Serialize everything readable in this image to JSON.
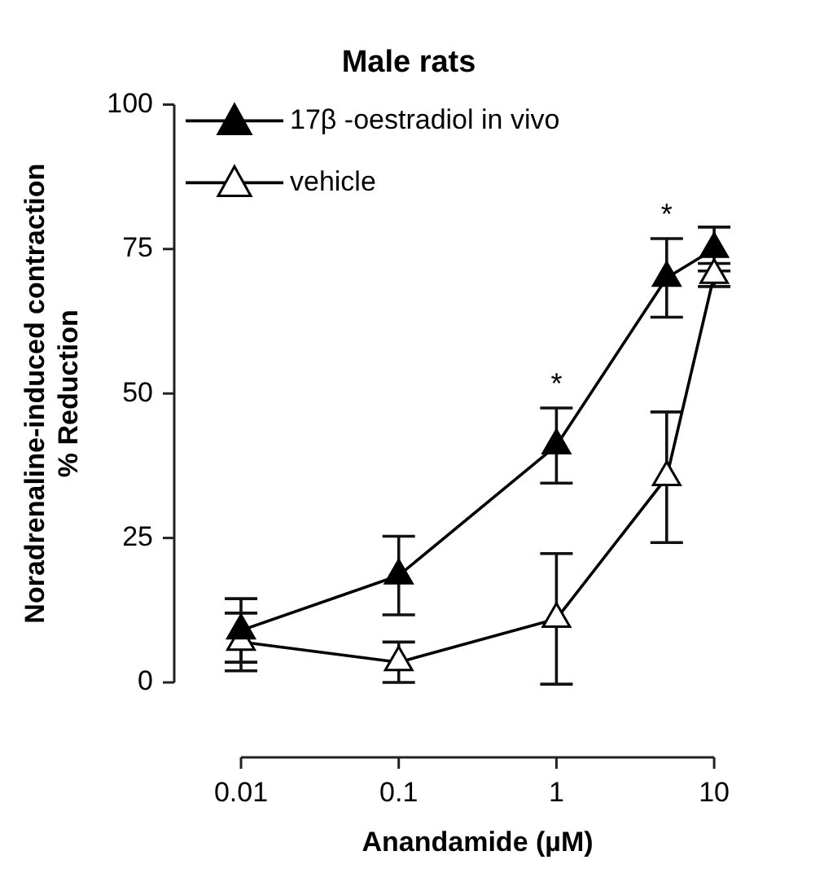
{
  "chart_data": {
    "type": "line",
    "title": "Male rats",
    "xlabel": "Anandamide (µM)",
    "ylabel": [
      "Noradrenaline-induced contraction",
      "% Reduction"
    ],
    "x": [
      0.01,
      0.1,
      1,
      5,
      10
    ],
    "log": "x",
    "xlim": [
      0.01,
      10
    ],
    "xticks": [
      0.01,
      0.1,
      1,
      10
    ],
    "ylim": [
      0,
      100
    ],
    "yticks": [
      0,
      25,
      50,
      75,
      100
    ],
    "grid": false,
    "legend": "top left",
    "line_style": "solid",
    "marker": "triangle",
    "series": [
      {
        "name": "17β -oestradiol in vivo",
        "color": "#000000",
        "values": [
          9,
          18.5,
          41,
          70,
          75
        ],
        "errors": [
          5.5,
          6.8,
          6.5,
          6.8,
          3.8
        ]
      },
      {
        "name": "vehicle",
        "color": "#ffffff",
        "values": [
          7,
          3.5,
          11,
          35.5,
          70.5
        ],
        "errors": [
          5,
          3.5,
          11.3,
          11.3,
          2
        ]
      }
    ],
    "annotations": [
      {
        "text": "*",
        "x": 1,
        "y": 41
      },
      {
        "text": "*",
        "x": 5,
        "y": 70
      }
    ]
  }
}
